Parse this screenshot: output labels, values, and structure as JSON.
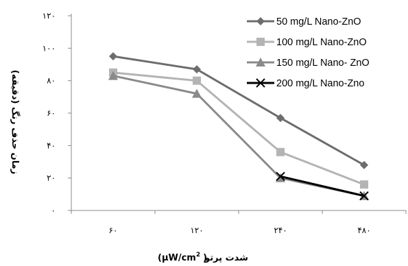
{
  "chart_data": {
    "type": "line",
    "categories": [
      "۶۰",
      "۱۲۰",
      "۲۴۰",
      "۴۸۰"
    ],
    "y_ticks": [
      {
        "value": 0,
        "label": "۰"
      },
      {
        "value": 20,
        "label": "۲۰"
      },
      {
        "value": 40,
        "label": "۴۰"
      },
      {
        "value": 60,
        "label": "۶۰"
      },
      {
        "value": 80,
        "label": "۸۰"
      },
      {
        "value": 100,
        "label": "۱۰۰"
      },
      {
        "value": 120,
        "label": "۱۲۰"
      }
    ],
    "ylim": [
      0,
      120
    ],
    "xlabel": "شدت پرتو",
    "xlabel_unit": "(μW/cm",
    "xlabel_unit_sup": "2",
    "xlabel_unit_close": ")",
    "ylabel": "زمان حذف رنگ (دقیقه)",
    "grid": false,
    "legend_position": "top-right",
    "series": [
      {
        "name": "50 mg/L Nano-ZnO",
        "values": [
          95,
          87,
          57,
          28
        ],
        "color": "#6d6d6d",
        "marker": "diamond"
      },
      {
        "name": "100 mg/L Nano-ZnO",
        "values": [
          85,
          80,
          36,
          16
        ],
        "color": "#b4b4b4",
        "marker": "square"
      },
      {
        "name": "150 mg/L Nano- ZnO",
        "values": [
          83,
          72,
          20,
          9
        ],
        "color": "#8a8a8a",
        "marker": "triangle"
      },
      {
        "name": "200 mg/L Nano-Zno",
        "values": [
          null,
          null,
          21,
          9
        ],
        "color": "#000000",
        "marker": "x"
      }
    ]
  }
}
